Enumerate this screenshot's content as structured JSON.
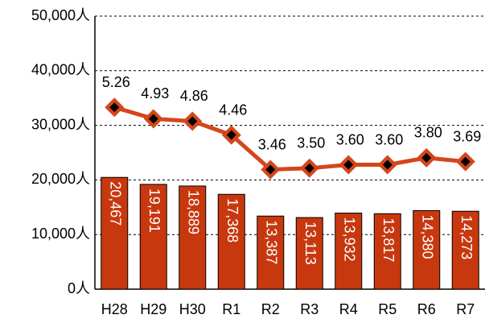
{
  "chart_data": {
    "type": "bar",
    "categories": [
      "H28",
      "H29",
      "H30",
      "R1",
      "R2",
      "R3",
      "R4",
      "R5",
      "R6",
      "R7"
    ],
    "series": [
      {
        "type": "bar",
        "color": "#c8380e",
        "values": [
          20467,
          19191,
          18889,
          17368,
          13387,
          13113,
          13932,
          13817,
          14380,
          14273
        ],
        "value_labels": [
          "20,467",
          "19,191",
          "18,889",
          "17,368",
          "13,387",
          "13,113",
          "13,932",
          "13,817",
          "14,380",
          "14,273"
        ]
      },
      {
        "type": "line",
        "axis": "y2",
        "color": "#d4461a",
        "values": [
          5.26,
          4.93,
          4.86,
          4.46,
          3.46,
          3.5,
          3.6,
          3.6,
          3.8,
          3.69
        ],
        "value_labels": [
          "5.26",
          "4.93",
          "4.86",
          "4.46",
          "3.46",
          "3.50",
          "3.60",
          "3.60",
          "3.80",
          "3.69"
        ]
      }
    ],
    "ylim": [
      0,
      50000
    ],
    "yticks": [
      {
        "value": 0,
        "label": "0人"
      },
      {
        "value": 10000,
        "label": "10,000人"
      },
      {
        "value": 20000,
        "label": "20,000人"
      },
      {
        "value": 30000,
        "label": "30,000人"
      },
      {
        "value": 40000,
        "label": "40,000人"
      },
      {
        "value": 50000,
        "label": "50,000人"
      }
    ],
    "y2lim": [
      0,
      7.9
    ],
    "grid": true
  }
}
